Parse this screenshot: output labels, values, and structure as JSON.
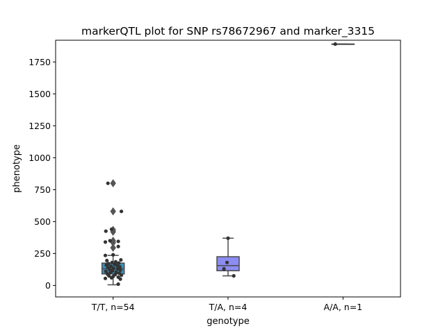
{
  "chart_data": {
    "type": "box",
    "title": "markerQTL plot for SNP rs78672967 and marker_3315",
    "xlabel": "genotype",
    "ylabel": "phenotype",
    "ylim": [
      -90,
      1920
    ],
    "yticks": [
      0,
      250,
      500,
      750,
      1000,
      1250,
      1500,
      1750
    ],
    "categories": [
      "T/T, n=54",
      "T/A, n=4",
      "A/A, n=1"
    ],
    "grid": false,
    "colors": {
      "box": [
        "#3a8fb8",
        "#8c8cf2",
        "#55a868"
      ],
      "line": "#4a4a4a",
      "point": "#333333",
      "outlier": "#555555"
    },
    "boxes": [
      {
        "q1": 90,
        "median": 130,
        "q3": 175,
        "whisker_low": 5,
        "whisker_high": 235,
        "outliers": [
          295,
          335,
          350,
          420,
          435,
          580,
          800
        ]
      },
      {
        "q1": 115,
        "median": 155,
        "q3": 225,
        "whisker_low": 75,
        "whisker_high": 370,
        "outliers": []
      },
      {
        "q1": 1890,
        "median": 1890,
        "q3": 1890,
        "whisker_low": 1890,
        "whisker_high": 1890,
        "outliers": []
      }
    ],
    "points": [
      {
        "cat": 0,
        "y": 800,
        "dx": -0.1
      },
      {
        "cat": 0,
        "y": 580,
        "dx": 0.16
      },
      {
        "cat": 0,
        "y": 440,
        "dx": -0.03
      },
      {
        "cat": 0,
        "y": 425,
        "dx": -0.14
      },
      {
        "cat": 0,
        "y": 350,
        "dx": -0.06
      },
      {
        "cat": 0,
        "y": 345,
        "dx": 0.1
      },
      {
        "cat": 0,
        "y": 340,
        "dx": -0.15
      },
      {
        "cat": 0,
        "y": 305,
        "dx": 0.1
      },
      {
        "cat": 0,
        "y": 240,
        "dx": 0.0
      },
      {
        "cat": 0,
        "y": 235,
        "dx": -0.15
      },
      {
        "cat": 0,
        "y": 200,
        "dx": 0.15
      },
      {
        "cat": 0,
        "y": 195,
        "dx": -0.12
      },
      {
        "cat": 0,
        "y": 185,
        "dx": 0.05
      },
      {
        "cat": 0,
        "y": 180,
        "dx": -0.02
      },
      {
        "cat": 0,
        "y": 175,
        "dx": 0.11
      },
      {
        "cat": 0,
        "y": 170,
        "dx": -0.09
      },
      {
        "cat": 0,
        "y": 165,
        "dx": 0.03
      },
      {
        "cat": 0,
        "y": 160,
        "dx": -0.13
      },
      {
        "cat": 0,
        "y": 155,
        "dx": 0.08
      },
      {
        "cat": 0,
        "y": 150,
        "dx": -0.04
      },
      {
        "cat": 0,
        "y": 145,
        "dx": 0.13
      },
      {
        "cat": 0,
        "y": 140,
        "dx": -0.1
      },
      {
        "cat": 0,
        "y": 135,
        "dx": 0.01
      },
      {
        "cat": 0,
        "y": 130,
        "dx": 0.09
      },
      {
        "cat": 0,
        "y": 125,
        "dx": -0.07
      },
      {
        "cat": 0,
        "y": 120,
        "dx": 0.14
      },
      {
        "cat": 0,
        "y": 115,
        "dx": -0.01
      },
      {
        "cat": 0,
        "y": 110,
        "dx": -0.14
      },
      {
        "cat": 0,
        "y": 105,
        "dx": 0.06
      },
      {
        "cat": 0,
        "y": 100,
        "dx": -0.05
      },
      {
        "cat": 0,
        "y": 95,
        "dx": 0.12
      },
      {
        "cat": 0,
        "y": 90,
        "dx": -0.11
      },
      {
        "cat": 0,
        "y": 85,
        "dx": 0.04
      },
      {
        "cat": 0,
        "y": 80,
        "dx": 0.16
      },
      {
        "cat": 0,
        "y": 75,
        "dx": -0.08
      },
      {
        "cat": 0,
        "y": 70,
        "dx": 0.0
      },
      {
        "cat": 0,
        "y": 65,
        "dx": 0.1
      },
      {
        "cat": 0,
        "y": 60,
        "dx": -0.03
      },
      {
        "cat": 0,
        "y": 55,
        "dx": -0.15
      },
      {
        "cat": 0,
        "y": 50,
        "dx": 0.14
      },
      {
        "cat": 0,
        "y": 10,
        "dx": 0.1
      },
      {
        "cat": 1,
        "y": 370,
        "dx": 0.0
      },
      {
        "cat": 1,
        "y": 180,
        "dx": -0.02
      },
      {
        "cat": 1,
        "y": 130,
        "dx": -0.08
      },
      {
        "cat": 1,
        "y": 75,
        "dx": 0.11
      },
      {
        "cat": 2,
        "y": 1890,
        "dx": -0.15
      }
    ]
  }
}
